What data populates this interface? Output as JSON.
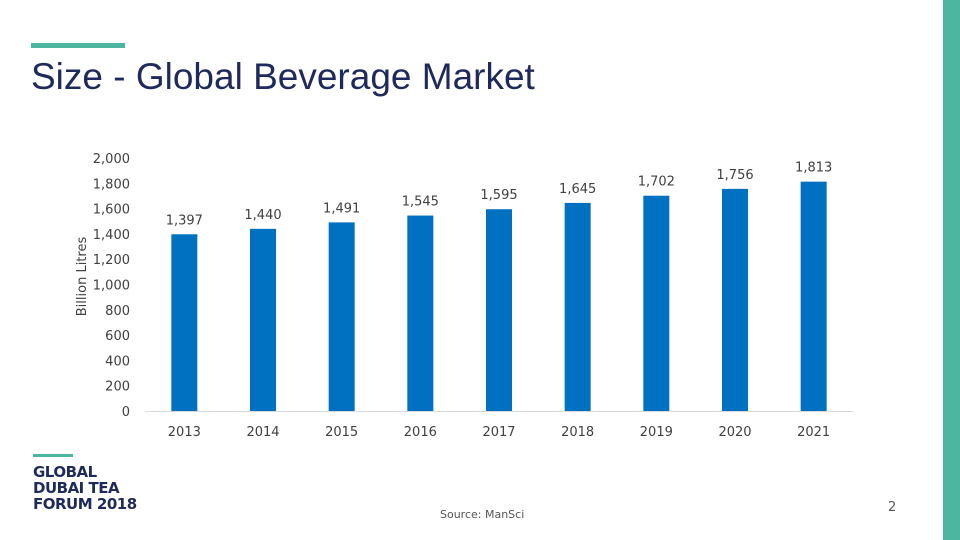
{
  "slide": {
    "title": "Size - Global Beverage Market",
    "source": "Source: ManSci",
    "page_number": "2",
    "accent_color": "#4db6a0",
    "title_color": "#1f2a5c"
  },
  "logo": {
    "lines": [
      "GLOBAL",
      "DUBAI TEA",
      "FORUM 2018"
    ]
  },
  "chart_data": {
    "type": "bar",
    "title": "",
    "xlabel": "",
    "ylabel": "Billion Litres",
    "categories": [
      "2013",
      "2014",
      "2015",
      "2016",
      "2017",
      "2018",
      "2019",
      "2020",
      "2021"
    ],
    "values": [
      1397,
      1440,
      1491,
      1545,
      1595,
      1645,
      1702,
      1756,
      1813
    ],
    "data_labels": [
      "1,397",
      "1,440",
      "1,491",
      "1,545",
      "1,595",
      "1,645",
      "1,702",
      "1,756",
      "1,813"
    ],
    "ylim": [
      0,
      2000
    ],
    "yticks": [
      0,
      200,
      400,
      600,
      800,
      1000,
      1200,
      1400,
      1600,
      1800,
      2000
    ],
    "ytick_labels": [
      "0",
      "200",
      "400",
      "600",
      "800",
      "1,000",
      "1,200",
      "1,400",
      "1,600",
      "1,800",
      "2,000"
    ],
    "bar_color": "#0070c0",
    "grid": false,
    "legend": "none"
  }
}
